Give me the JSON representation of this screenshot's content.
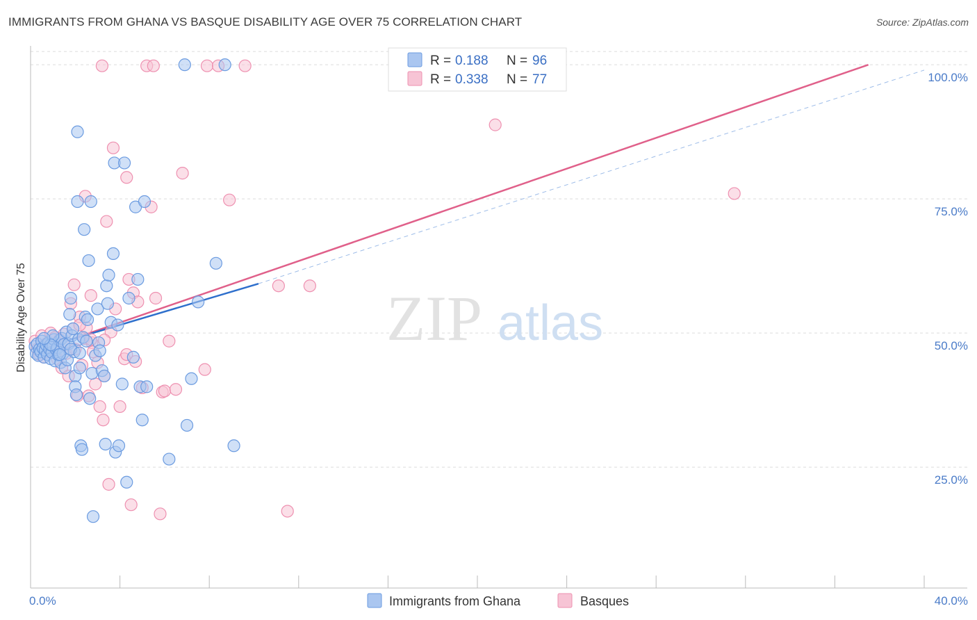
{
  "title": "IMMIGRANTS FROM GHANA VS BASQUE DISABILITY AGE OVER 75 CORRELATION CHART",
  "source": "Source: ZipAtlas.com",
  "watermark": {
    "zip": "ZIP",
    "atlas": "atlas"
  },
  "legend": {
    "r_label": "R =",
    "n_label": "N =",
    "rows": [
      {
        "r": "0.188",
        "n": "96"
      },
      {
        "r": "0.338",
        "n": "77"
      }
    ]
  },
  "chart_data": {
    "type": "scatter",
    "ylabel": "Disability Age Over 75",
    "xlim": [
      0,
      40
    ],
    "ylim": [
      3,
      103
    ],
    "x_ticks": [
      {
        "value": 0,
        "label": "0.0%"
      },
      {
        "value": 40,
        "label": "40.0%"
      }
    ],
    "y_ticks": [
      {
        "value": 25,
        "label": "25.0%"
      },
      {
        "value": 50,
        "label": "50.0%"
      },
      {
        "value": 75,
        "label": "75.0%"
      },
      {
        "value": 100,
        "label": "100.0%"
      }
    ],
    "grid": true,
    "legend_position": "top-center",
    "series": [
      {
        "name": "Immigrants from Ghana",
        "color": "#6b9be0",
        "fill": "#aac6f0",
        "line_color": "#2e6fcc",
        "trend": {
          "x0": 0.2,
          "y0": 46.8,
          "x1": 10.2,
          "y1": 59.2
        },
        "trend_dashed": {
          "x0": 10.2,
          "y0": 59.2,
          "x1": 40,
          "y1": 99
        },
        "points": [
          [
            0.2,
            47.5
          ],
          [
            0.25,
            46.2
          ],
          [
            0.3,
            48.0
          ],
          [
            0.35,
            45.8
          ],
          [
            0.4,
            47.0
          ],
          [
            0.45,
            46.5
          ],
          [
            0.5,
            48.5
          ],
          [
            0.55,
            47.2
          ],
          [
            0.6,
            45.5
          ],
          [
            0.65,
            46.8
          ],
          [
            0.7,
            47.8
          ],
          [
            0.75,
            46.0
          ],
          [
            0.8,
            48.2
          ],
          [
            0.85,
            47.0
          ],
          [
            0.9,
            45.2
          ],
          [
            0.95,
            46.4
          ],
          [
            1.0,
            47.6
          ],
          [
            1.05,
            48.8
          ],
          [
            1.1,
            44.8
          ],
          [
            1.15,
            46.9
          ],
          [
            1.2,
            47.3
          ],
          [
            1.25,
            45.9
          ],
          [
            1.3,
            48.6
          ],
          [
            1.35,
            44.5
          ],
          [
            1.4,
            49.0
          ],
          [
            1.45,
            46.2
          ],
          [
            1.5,
            47.9
          ],
          [
            1.55,
            43.5
          ],
          [
            1.6,
            50.2
          ],
          [
            1.65,
            45.0
          ],
          [
            1.7,
            48.0
          ],
          [
            1.75,
            53.5
          ],
          [
            1.8,
            56.5
          ],
          [
            1.85,
            49.5
          ],
          [
            1.9,
            50.8
          ],
          [
            1.95,
            46.5
          ],
          [
            2.0,
            42.0
          ],
          [
            2.0,
            40.0
          ],
          [
            2.05,
            38.5
          ],
          [
            2.1,
            87.5
          ],
          [
            2.1,
            74.5
          ],
          [
            2.15,
            48.8
          ],
          [
            2.2,
            43.5
          ],
          [
            2.25,
            29.0
          ],
          [
            2.3,
            28.3
          ],
          [
            2.35,
            49.2
          ],
          [
            2.4,
            69.3
          ],
          [
            2.45,
            53.0
          ],
          [
            2.5,
            48.5
          ],
          [
            2.55,
            52.5
          ],
          [
            2.6,
            63.5
          ],
          [
            2.65,
            37.8
          ],
          [
            2.7,
            74.5
          ],
          [
            2.75,
            42.5
          ],
          [
            2.8,
            15.8
          ],
          [
            2.9,
            45.8
          ],
          [
            3.0,
            54.5
          ],
          [
            3.05,
            48.2
          ],
          [
            3.1,
            46.7
          ],
          [
            3.2,
            43.0
          ],
          [
            3.3,
            42.0
          ],
          [
            3.35,
            29.3
          ],
          [
            3.4,
            58.8
          ],
          [
            3.45,
            55.5
          ],
          [
            3.5,
            60.8
          ],
          [
            3.6,
            52.0
          ],
          [
            3.7,
            64.8
          ],
          [
            3.75,
            81.7
          ],
          [
            3.8,
            27.8
          ],
          [
            3.9,
            51.5
          ],
          [
            3.95,
            29.0
          ],
          [
            4.1,
            40.5
          ],
          [
            4.2,
            81.7
          ],
          [
            4.3,
            22.2
          ],
          [
            4.4,
            56.5
          ],
          [
            4.6,
            45.5
          ],
          [
            4.7,
            73.5
          ],
          [
            4.8,
            60.0
          ],
          [
            4.9,
            40.0
          ],
          [
            5.0,
            33.8
          ],
          [
            5.1,
            74.5
          ],
          [
            5.2,
            40.0
          ],
          [
            6.2,
            26.5
          ],
          [
            6.9,
            100.0
          ],
          [
            7.0,
            32.8
          ],
          [
            7.2,
            41.5
          ],
          [
            7.5,
            55.8
          ],
          [
            8.3,
            63.0
          ],
          [
            8.7,
            100.0
          ],
          [
            9.1,
            29.0
          ],
          [
            1.0,
            49.5
          ],
          [
            0.9,
            47.8
          ],
          [
            1.3,
            46.0
          ],
          [
            0.6,
            49.0
          ],
          [
            1.8,
            47.0
          ],
          [
            2.2,
            46.3
          ]
        ]
      },
      {
        "name": "Basques",
        "color": "#ee90b0",
        "fill": "#f7c4d5",
        "line_color": "#e0608a",
        "trend": {
          "x0": 0.2,
          "y0": 46.5,
          "x1": 37.5,
          "y1": 100.0
        },
        "points": [
          [
            0.2,
            48.5
          ],
          [
            0.3,
            47.0
          ],
          [
            0.4,
            46.0
          ],
          [
            0.5,
            49.5
          ],
          [
            0.6,
            45.5
          ],
          [
            0.7,
            48.0
          ],
          [
            0.8,
            47.5
          ],
          [
            0.9,
            50.0
          ],
          [
            1.0,
            46.8
          ],
          [
            1.1,
            49.2
          ],
          [
            1.2,
            45.2
          ],
          [
            1.3,
            48.8
          ],
          [
            1.4,
            43.5
          ],
          [
            1.5,
            47.8
          ],
          [
            1.6,
            46.2
          ],
          [
            1.7,
            42.0
          ],
          [
            1.8,
            55.5
          ],
          [
            1.9,
            50.8
          ],
          [
            1.95,
            59.0
          ],
          [
            2.0,
            47.0
          ],
          [
            2.1,
            38.3
          ],
          [
            2.2,
            53.0
          ],
          [
            2.3,
            44.0
          ],
          [
            2.4,
            49.0
          ],
          [
            2.45,
            75.5
          ],
          [
            2.5,
            51.0
          ],
          [
            2.6,
            38.3
          ],
          [
            2.7,
            57.0
          ],
          [
            2.75,
            48.2
          ],
          [
            2.8,
            46.5
          ],
          [
            2.9,
            40.5
          ],
          [
            3.0,
            44.5
          ],
          [
            3.1,
            36.3
          ],
          [
            3.2,
            99.8
          ],
          [
            3.25,
            33.8
          ],
          [
            3.3,
            42.0
          ],
          [
            3.4,
            70.8
          ],
          [
            3.5,
            21.8
          ],
          [
            3.6,
            50.2
          ],
          [
            3.7,
            84.5
          ],
          [
            3.8,
            54.5
          ],
          [
            4.0,
            36.3
          ],
          [
            4.2,
            45.2
          ],
          [
            4.3,
            79.0
          ],
          [
            4.4,
            60.0
          ],
          [
            4.5,
            18.0
          ],
          [
            4.6,
            57.5
          ],
          [
            4.7,
            44.7
          ],
          [
            4.8,
            55.8
          ],
          [
            5.0,
            39.8
          ],
          [
            5.2,
            99.8
          ],
          [
            5.4,
            73.5
          ],
          [
            5.5,
            99.8
          ],
          [
            5.6,
            56.5
          ],
          [
            5.8,
            16.3
          ],
          [
            5.9,
            39.0
          ],
          [
            6.0,
            39.2
          ],
          [
            6.2,
            48.5
          ],
          [
            6.5,
            39.5
          ],
          [
            6.8,
            79.8
          ],
          [
            7.8,
            43.2
          ],
          [
            7.9,
            99.8
          ],
          [
            8.4,
            99.8
          ],
          [
            8.9,
            74.8
          ],
          [
            9.6,
            99.8
          ],
          [
            11.1,
            58.8
          ],
          [
            11.5,
            16.8
          ],
          [
            12.5,
            58.8
          ],
          [
            20.8,
            88.8
          ],
          [
            31.5,
            76.0
          ],
          [
            1.2,
            47.2
          ],
          [
            0.7,
            46.5
          ],
          [
            1.5,
            49.8
          ],
          [
            2.2,
            51.5
          ],
          [
            3.3,
            48.7
          ],
          [
            2.7,
            48.8
          ],
          [
            4.3,
            46.0
          ]
        ]
      }
    ]
  }
}
